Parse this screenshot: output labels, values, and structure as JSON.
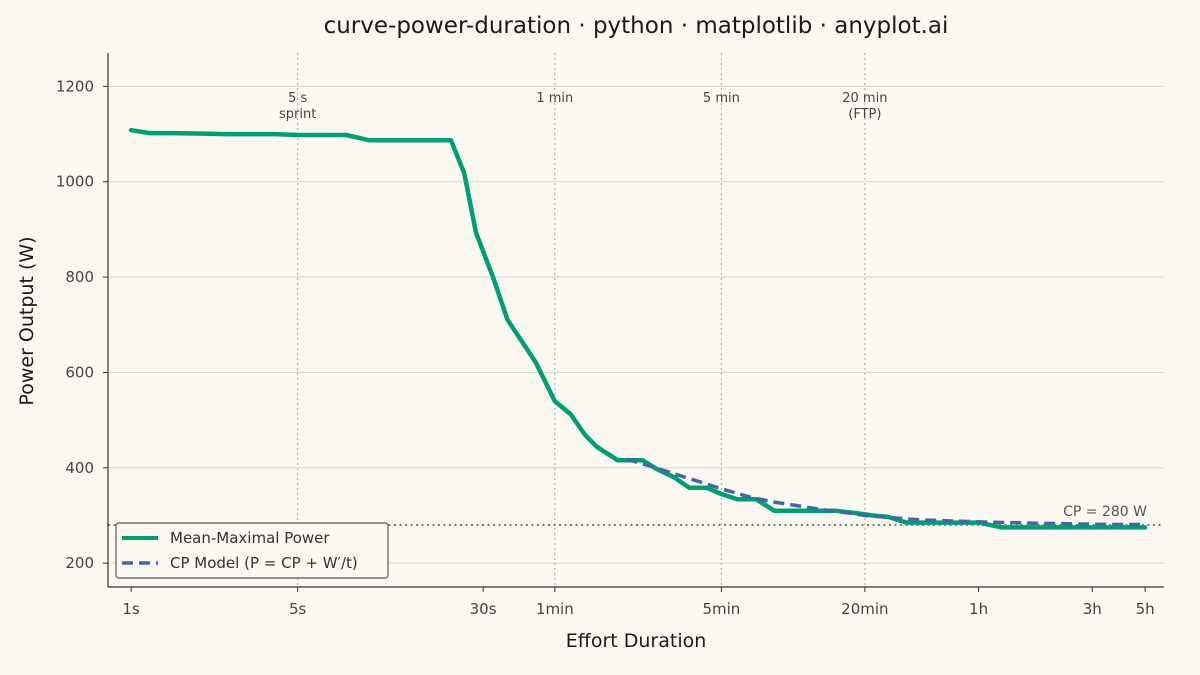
{
  "chart_data": {
    "type": "line",
    "title": "curve-power-duration · python · matplotlib · anyplot.ai",
    "xlabel": "Effort Duration",
    "ylabel": "Power Output (W)",
    "x_scale": "log",
    "x_unit": "seconds",
    "xlim": [
      0.8,
      21600
    ],
    "ylim": [
      150,
      1270
    ],
    "grid": "horizontal",
    "legend_position": "lower-left",
    "x_ticks": [
      {
        "value": 1,
        "label": "1s"
      },
      {
        "value": 5,
        "label": "5s"
      },
      {
        "value": 30,
        "label": "30s"
      },
      {
        "value": 60,
        "label": "1min"
      },
      {
        "value": 300,
        "label": "5min"
      },
      {
        "value": 1200,
        "label": "20min"
      },
      {
        "value": 3600,
        "label": "1h"
      },
      {
        "value": 10800,
        "label": "3h"
      },
      {
        "value": 18000,
        "label": "5h"
      }
    ],
    "y_ticks": [
      200,
      400,
      600,
      800,
      1000,
      1200
    ],
    "reference_lines": [
      {
        "x": 5,
        "label_lines": [
          "5 s",
          "sprint"
        ]
      },
      {
        "x": 60,
        "label_lines": [
          "1 min"
        ]
      },
      {
        "x": 300,
        "label_lines": [
          "5 min"
        ]
      },
      {
        "x": 1200,
        "label_lines": [
          "20 min",
          "(FTP)"
        ]
      }
    ],
    "cp_line": {
      "y": 280,
      "label": "CP = 280 W"
    },
    "series": [
      {
        "name": "Mean-Maximal Power",
        "color": "#009E73",
        "style": "solid",
        "x": [
          1,
          1.2,
          1.5,
          2,
          2.5,
          3,
          4,
          5,
          6,
          7,
          8,
          10,
          12,
          15,
          18,
          20,
          22,
          25,
          28,
          33,
          38,
          45,
          50,
          60,
          70,
          80,
          90,
          110,
          140,
          160,
          190,
          220,
          260,
          300,
          350,
          420,
          500,
          600,
          700,
          900,
          1100,
          1300,
          1500,
          1800,
          2200,
          2700,
          3300,
          3600,
          4500,
          6000,
          8000,
          10000,
          14000,
          18000
        ],
        "y": [
          1108,
          1102,
          1102,
          1101,
          1100,
          1100,
          1100,
          1098,
          1098,
          1098,
          1098,
          1087,
          1087,
          1087,
          1087,
          1087,
          1087,
          1018,
          893,
          800,
          710,
          655,
          620,
          540,
          512,
          470,
          444,
          416,
          416,
          398,
          380,
          358,
          358,
          345,
          334,
          334,
          310,
          310,
          310,
          310,
          305,
          300,
          297,
          285,
          285,
          285,
          285,
          285,
          275,
          275,
          275,
          275,
          275,
          275
        ]
      },
      {
        "name": "CP Model  (P = CP + W′/t)",
        "color": "#4467A3",
        "style": "dashed",
        "x": [
          120,
          150,
          200,
          260,
          300,
          400,
          500,
          600,
          800,
          1000,
          1200,
          1500,
          2000,
          3000,
          4000,
          6000,
          8000,
          10000,
          14000,
          18000
        ],
        "y": [
          418,
          404,
          384,
          366,
          356,
          338,
          328,
          322,
          312,
          306,
          300,
          296,
          291,
          288,
          286,
          284,
          283,
          282,
          281,
          281
        ]
      }
    ]
  }
}
